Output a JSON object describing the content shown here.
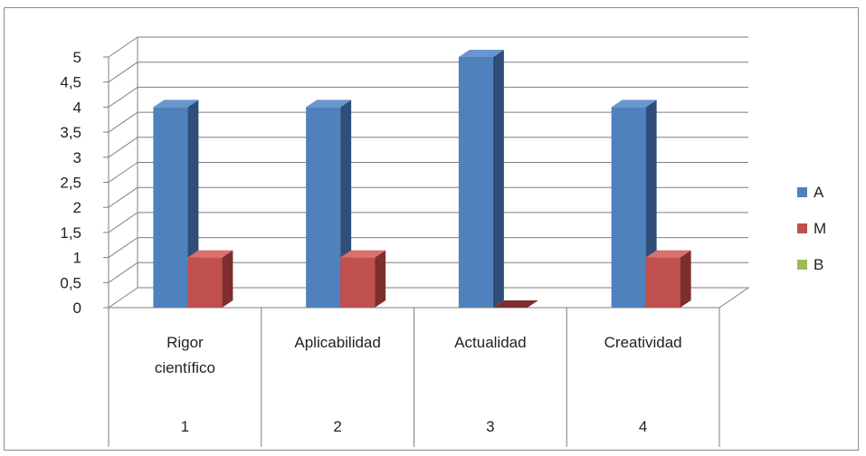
{
  "chart_data": {
    "type": "bar",
    "title": "",
    "xlabel": "",
    "ylabel": "",
    "categories": [
      {
        "label": [
          "Rigor",
          "científico"
        ],
        "number": "1"
      },
      {
        "label": [
          "Aplicabilidad"
        ],
        "number": "2"
      },
      {
        "label": [
          "Actualidad"
        ],
        "number": "3"
      },
      {
        "label": [
          "Creatividad"
        ],
        "number": "4"
      }
    ],
    "series": [
      {
        "name": "A",
        "values": [
          4,
          4,
          5,
          4
        ],
        "color": "#4F81BD",
        "side": "#2F4F7A",
        "top": "#6A96CF"
      },
      {
        "name": "M",
        "values": [
          1,
          1,
          0,
          1
        ],
        "color": "#C0504D",
        "side": "#7E2F2D",
        "top": "#D8716E"
      },
      {
        "name": "B",
        "values": [
          0,
          0,
          0,
          0
        ],
        "color": "#9BBB59",
        "side": "#6C8A33",
        "top": "#B2CE78"
      }
    ],
    "ylim": [
      0,
      5
    ],
    "yticks": [
      "0",
      "0,5",
      "1",
      "1,5",
      "2",
      "2,5",
      "3",
      "3,5",
      "4",
      "4,5",
      "5"
    ],
    "grid": true,
    "legend_position": "right",
    "three_d": true
  }
}
